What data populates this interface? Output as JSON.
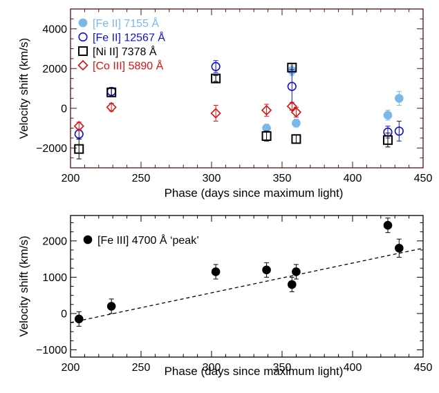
{
  "chart_data": [
    {
      "type": "scatter",
      "xlabel": "Phase (days since maximum light)",
      "ylabel": "Velocity shift (km/s)",
      "xlim": [
        200,
        450
      ],
      "ylim": [
        -3000,
        5000
      ],
      "x_ticks": [
        "200",
        "250",
        "300",
        "350",
        "400",
        "450"
      ],
      "y_ticks": [
        "-2000",
        "0",
        "2000",
        "4000"
      ],
      "axis_color": "#5a0f0f",
      "legend_position": "top-left",
      "series": [
        {
          "name": "[Fe II] 7155 Å",
          "marker": "filled-circle",
          "color": "#7bb8ea",
          "points": [
            {
              "x": 339,
              "y": -1000,
              "err": 200
            },
            {
              "x": 357,
              "y": 1900,
              "err": 250
            },
            {
              "x": 360,
              "y": -750,
              "err": 200
            },
            {
              "x": 425,
              "y": -350,
              "err": 250
            },
            {
              "x": 433,
              "y": 500,
              "err": 350
            }
          ]
        },
        {
          "name": "[Fe II] 12567 Å",
          "marker": "open-circle",
          "color": "#1010cc",
          "points": [
            {
              "x": 206,
              "y": -1300,
              "err": 250
            },
            {
              "x": 229,
              "y": 850,
              "err": 200
            },
            {
              "x": 303,
              "y": 2100,
              "err": 300
            },
            {
              "x": 357,
              "y": 1100,
              "err": 850
            },
            {
              "x": 425,
              "y": -1200,
              "err": 300
            },
            {
              "x": 433,
              "y": -1150,
              "err": 500
            }
          ]
        },
        {
          "name": "[Ni II] 7378 Å",
          "marker": "open-square",
          "color": "#000000",
          "points": [
            {
              "x": 206,
              "y": -2050,
              "err": 500
            },
            {
              "x": 229,
              "y": 800,
              "err": 200
            },
            {
              "x": 303,
              "y": 1500,
              "err": 150
            },
            {
              "x": 339,
              "y": -1400,
              "err": 250
            },
            {
              "x": 357,
              "y": 2050,
              "err": 200
            },
            {
              "x": 360,
              "y": -1550,
              "err": 200
            },
            {
              "x": 425,
              "y": -1600,
              "err": 350
            }
          ]
        },
        {
          "name": "[Co III] 5890 Å",
          "marker": "open-diamond",
          "color": "#e01010",
          "points": [
            {
              "x": 206,
              "y": -900,
              "err": 200
            },
            {
              "x": 229,
              "y": 50,
              "err": 200
            },
            {
              "x": 303,
              "y": -250,
              "err": 400
            },
            {
              "x": 339,
              "y": -100,
              "err": 300
            },
            {
              "x": 357,
              "y": 100,
              "err": 200
            },
            {
              "x": 360,
              "y": -200,
              "err": 250
            }
          ]
        }
      ]
    },
    {
      "type": "scatter",
      "xlabel": "Phase (days since maximum light)",
      "ylabel": "Velocity shift (km/s)",
      "xlim": [
        200,
        450
      ],
      "ylim": [
        -1200,
        2700
      ],
      "x_ticks": [
        "200",
        "250",
        "300",
        "350",
        "400",
        "450"
      ],
      "y_ticks": [
        "-1000",
        "0",
        "1000",
        "2000"
      ],
      "axis_color": "#000000",
      "legend_position": "top-left",
      "series": [
        {
          "name": "[Fe III] 4700 Å ‘peak’",
          "marker": "filled-circle",
          "color": "#000000",
          "points": [
            {
              "x": 206,
              "y": -150,
              "err": 200
            },
            {
              "x": 229,
              "y": 200,
              "err": 200
            },
            {
              "x": 303,
              "y": 1150,
              "err": 200
            },
            {
              "x": 339,
              "y": 1200,
              "err": 200
            },
            {
              "x": 357,
              "y": 800,
              "err": 200
            },
            {
              "x": 360,
              "y": 1150,
              "err": 200
            },
            {
              "x": 425,
              "y": 2430,
              "err": 200
            },
            {
              "x": 433,
              "y": 1800,
              "err": 250
            }
          ]
        }
      ],
      "fit_line": {
        "style": "dashed",
        "color": "#000000",
        "x": [
          200,
          450
        ],
        "y": [
          -250,
          1800
        ]
      }
    }
  ]
}
